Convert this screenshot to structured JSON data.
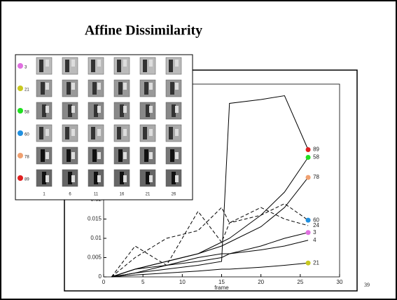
{
  "title": "Affine Dissimilarity",
  "page_number": "39",
  "patches": {
    "rows": [
      {
        "label": "3",
        "color": "#e070e0"
      },
      {
        "label": "21",
        "color": "#c8c820"
      },
      {
        "label": "58",
        "color": "#20e020"
      },
      {
        "label": "60",
        "color": "#2090e0"
      },
      {
        "label": "78",
        "color": "#f0a070"
      },
      {
        "label": "89",
        "color": "#e02020"
      }
    ],
    "columns": [
      "1",
      "6",
      "11",
      "16",
      "21",
      "26"
    ]
  },
  "chart_data": {
    "type": "line",
    "x_label": "frame",
    "x": [
      1,
      4,
      8,
      12,
      15,
      16,
      20,
      23,
      26
    ],
    "xlim": [
      0,
      30
    ],
    "xticks": [
      0,
      5,
      10,
      15,
      20,
      25,
      30
    ],
    "ylim": [
      0,
      0.05
    ],
    "yticks": [
      0,
      0.005,
      0.01,
      0.015,
      0.02
    ],
    "series": [
      {
        "name": "89",
        "color": "#e02020",
        "dash": false,
        "values": [
          0,
          0.001,
          0.002,
          0.003,
          0.004,
          0.045,
          0.046,
          0.047,
          0.033
        ]
      },
      {
        "name": "58",
        "color": "#20e020",
        "dash": false,
        "values": [
          0,
          0.002,
          0.004,
          0.006,
          0.009,
          0.01,
          0.016,
          0.022,
          0.031
        ]
      },
      {
        "name": "78",
        "color": "#f0a070",
        "dash": false,
        "values": [
          0,
          0.002,
          0.004,
          0.006,
          0.008,
          0.009,
          0.013,
          0.018,
          0.0258
        ]
      },
      {
        "name": "60",
        "color": "#2090e0",
        "dash": true,
        "values": [
          0,
          0.008,
          0.003,
          0.017,
          0.009,
          0.014,
          0.016,
          0.019,
          0.0147
        ]
      },
      {
        "name": "24",
        "color": null,
        "dash": true,
        "values": [
          0,
          0.005,
          0.01,
          0.012,
          0.018,
          0.014,
          0.018,
          0.015,
          0.0133
        ]
      },
      {
        "name": "3",
        "color": "#e070e0",
        "dash": false,
        "values": [
          0,
          0.002,
          0.003,
          0.005,
          0.006,
          0.006,
          0.008,
          0.01,
          0.0115
        ]
      },
      {
        "name": "4",
        "color": null,
        "dash": false,
        "values": [
          0,
          0.001,
          0.003,
          0.004,
          0.005,
          0.006,
          0.007,
          0.008,
          0.0095
        ]
      },
      {
        "name": "21",
        "color": "#c8c820",
        "dash": false,
        "values": [
          0,
          0.0005,
          0.001,
          0.0015,
          0.002,
          0.002,
          0.0025,
          0.003,
          0.0036
        ]
      }
    ]
  }
}
